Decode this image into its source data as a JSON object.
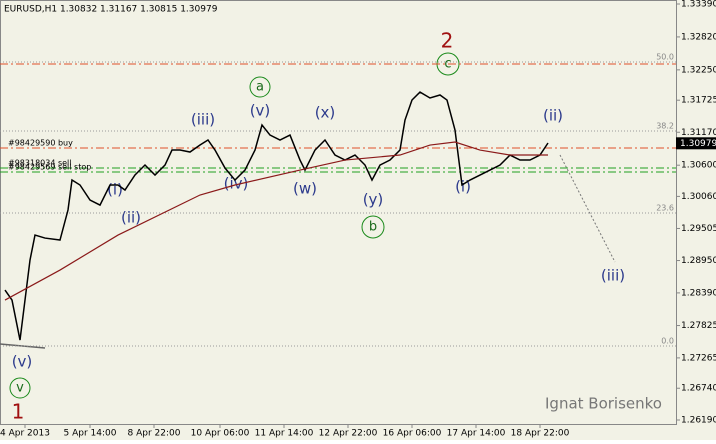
{
  "chart_data": {
    "type": "line",
    "title": "EURUSD,H1  1.30832 1.31167 1.30815 1.30979",
    "watermark": "Ignat Borisenko",
    "background": "#f2f2e6",
    "x": [
      2.5,
      6,
      10,
      12.5,
      15,
      17.5,
      22.5,
      30,
      34,
      36,
      40,
      45,
      50,
      55,
      59,
      62.5,
      67.5,
      72.5,
      77.5,
      82.5,
      86,
      90,
      95,
      100,
      104,
      107.5,
      112.5,
      117.5,
      122.5,
      127.5,
      131,
      135,
      140,
      145,
      150,
      152.5,
      157.5,
      162.5,
      167.5,
      172.5,
      177.5,
      182.5,
      186,
      190,
      195,
      200,
      202.5,
      206,
      210,
      215,
      220,
      223.5,
      227.5,
      231,
      235,
      240,
      245,
      250,
      255,
      260,
      265,
      270,
      274
    ],
    "xlim": [
      0,
      338
    ],
    "ylim": [
      1.26121,
      1.33459
    ],
    "xticks": [
      {
        "value": 12.5,
        "label": "4 Apr 2013"
      },
      {
        "value": 45,
        "label": "5 Apr 14:00"
      },
      {
        "value": 77,
        "label": "8 Apr 22:00"
      },
      {
        "value": 110,
        "label": "10 Apr 06:00"
      },
      {
        "value": 142,
        "label": "11 Apr 14:00"
      },
      {
        "value": 174,
        "label": "12 Apr 22:00"
      },
      {
        "value": 206,
        "label": "16 Apr 06:00"
      },
      {
        "value": 238,
        "label": "17 Apr 14:00"
      },
      {
        "value": 270,
        "label": "18 Apr 22:00"
      }
    ],
    "yticks": [
      {
        "value": 1.3339,
        "label": "1.33390"
      },
      {
        "value": 1.3282,
        "label": "1.32820"
      },
      {
        "value": 1.3225,
        "label": "1.32250"
      },
      1.31725,
      {
        "value": 1.3117,
        "label": "1.31170"
      },
      {
        "value": 1.306,
        "label": "1.30600"
      },
      {
        "value": 1.3006,
        "label": "1.30060"
      },
      1.29505,
      {
        "value": 1.2895,
        "label": "1.28950"
      },
      {
        "value": 1.2839,
        "label": "1.28390"
      },
      1.27825,
      1.27265,
      {
        "value": 1.2674,
        "label": "1.26740"
      },
      {
        "value": 1.2619,
        "label": "1.26190"
      }
    ],
    "series": [
      {
        "name": "EURUSD",
        "color": "#000000",
        "values": [
          1.28439,
          1.28266,
          1.27574,
          1.28266,
          1.28958,
          1.29391,
          1.29339,
          1.29305,
          1.29824,
          1.30343,
          1.30257,
          1.29997,
          1.2991,
          1.30257,
          1.30257,
          1.3017,
          1.3043,
          1.30603,
          1.3043,
          1.30603,
          1.30862,
          1.30862,
          1.30828,
          1.30949,
          1.31036,
          1.30862,
          1.30551,
          1.30343,
          1.30516,
          1.30862,
          1.31295,
          1.31122,
          1.31036,
          1.31122,
          1.30689,
          1.30516,
          1.30862,
          1.31036,
          1.30776,
          1.30689,
          1.30776,
          1.30603,
          1.30343,
          1.30603,
          1.30689,
          1.30862,
          1.31382,
          1.31728,
          1.31866,
          1.31763,
          1.31815,
          1.31728,
          1.31209,
          1.30257,
          1.30343,
          1.3043,
          1.30516,
          1.30603,
          1.30776,
          1.30689,
          1.30689,
          1.30776,
          1.30984
        ]
      },
      {
        "name": "MA",
        "color": "#8b1a1a",
        "values": [
          1.28266,
          null,
          null,
          null,
          null,
          null,
          null,
          1.28785,
          null,
          null,
          null,
          null,
          null,
          null,
          1.29391,
          null,
          null,
          null,
          null,
          null,
          null,
          null,
          null,
          1.30084,
          null,
          null,
          null,
          1.30257,
          null,
          null,
          null,
          null,
          null,
          null,
          1.30516,
          null,
          null,
          null,
          null,
          1.30689,
          null,
          null,
          null,
          null,
          null,
          1.30776,
          null,
          null,
          null,
          1.30949,
          null,
          null,
          1.31001,
          null,
          null,
          1.30862,
          null,
          null,
          1.30776,
          null,
          null,
          null,
          1.30776
        ]
      }
    ],
    "last_price": 1.30979,
    "fib_levels": [
      {
        "name": "50.0",
        "value": 1.32386
      },
      {
        "name": "38.2",
        "value": 1.31191
      },
      {
        "name": "23.6",
        "value": 1.29772
      },
      {
        "name": "0.0",
        "value": 1.2747
      }
    ],
    "target_line": {
      "value": 1.32351,
      "color": "#e0502a"
    },
    "orders": [
      {
        "name": "#98429590 buy",
        "value": 1.30897,
        "color": "#e0502a"
      },
      {
        "name": "#98318034 sell",
        "value": 1.30551,
        "color": "#20a020"
      },
      {
        "name": "#98429569 sell stop",
        "value": 1.30482,
        "color": "#20a020"
      }
    ],
    "wave_labels": [
      "1",
      "(v)",
      "v",
      "(i)",
      "(ii)",
      "(iii)",
      "(iv)",
      "(v)",
      "a",
      "(x)",
      "(w)",
      "(y)",
      "b",
      "2",
      "c",
      "(i)",
      "(ii)",
      "(iii)"
    ]
  }
}
